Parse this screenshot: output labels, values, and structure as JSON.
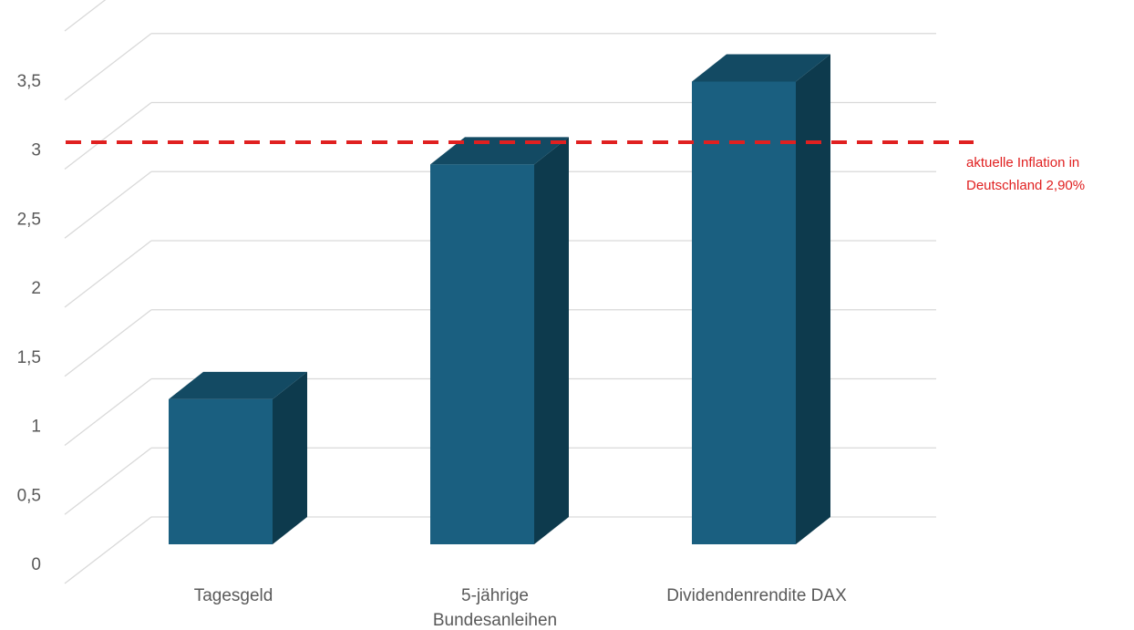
{
  "chart_data": {
    "type": "bar",
    "style": "3d-column",
    "categories": [
      [
        "Tagesgeld"
      ],
      [
        "5-jährige",
        "Bundesanleihen"
      ],
      [
        "Dividendenrendite DAX"
      ]
    ],
    "values": [
      1.05,
      2.75,
      3.35
    ],
    "ylim": [
      0,
      3.5
    ],
    "yticks": [
      "0",
      "0,5",
      "1",
      "1,5",
      "2",
      "2,5",
      "3",
      "3,5"
    ],
    "ytick_values": [
      0,
      0.5,
      1,
      1.5,
      2,
      2.5,
      3,
      3.5
    ],
    "grid": true,
    "legend": "none",
    "reference_line": {
      "value": 2.9,
      "label_lines": [
        "aktuelle Inflation in",
        "Deutschland 2,90%"
      ],
      "style": "dashed",
      "color": "#e02020"
    },
    "colors": {
      "bar_front": "#1a5f80",
      "bar_side": "#0d3a4d",
      "bar_top": "#134a63",
      "grid": "#d9d9d9"
    }
  }
}
